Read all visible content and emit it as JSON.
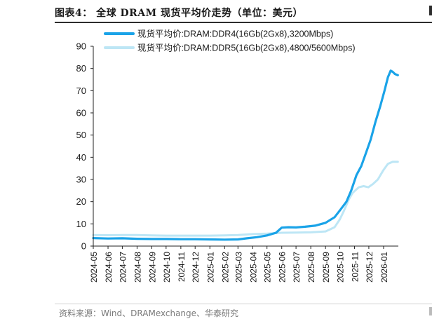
{
  "header": {
    "title": "图表4：  全球 DRAM 现货平均价走势（单位：美元）"
  },
  "footer": {
    "source": "资料来源：Wind、DRAMexchange、华泰研究"
  },
  "chart_data": {
    "type": "line",
    "ylim": [
      0,
      90
    ],
    "yticks": [
      0,
      10,
      20,
      30,
      40,
      50,
      60,
      70,
      80,
      90
    ],
    "xticks": [
      "2024-05",
      "2024-06",
      "2024-07",
      "2024-08",
      "2024-09",
      "2024-10",
      "2024-11",
      "2024-12",
      "2025-01",
      "2025-02",
      "2025-03",
      "2025-04",
      "2025-05",
      "2025-06",
      "2025-07",
      "2025-08",
      "2025-09",
      "2025-10",
      "2025-11",
      "2025-12",
      "2026-01"
    ],
    "legend_position": "top-left",
    "series": [
      {
        "name": "现货平均价:DRAM:DDR4(16Gb(2Gx8),3200Mbps)",
        "color": "#1aa3e8",
        "points": [
          [
            "2024-05-01",
            3.6
          ],
          [
            "2024-06-01",
            3.4
          ],
          [
            "2024-07-01",
            3.5
          ],
          [
            "2024-08-01",
            3.3
          ],
          [
            "2024-09-01",
            3.2
          ],
          [
            "2024-10-01",
            3.2
          ],
          [
            "2024-11-01",
            3.1
          ],
          [
            "2024-12-01",
            3.1
          ],
          [
            "2025-01-01",
            3.0
          ],
          [
            "2025-02-01",
            2.9
          ],
          [
            "2025-03-01",
            3.0
          ],
          [
            "2025-03-20",
            3.5
          ],
          [
            "2025-04-10",
            4.0
          ],
          [
            "2025-05-01",
            4.8
          ],
          [
            "2025-05-20",
            6.0
          ],
          [
            "2025-06-01",
            8.3
          ],
          [
            "2025-06-15",
            8.5
          ],
          [
            "2025-07-01",
            8.4
          ],
          [
            "2025-07-20",
            8.7
          ],
          [
            "2025-08-10",
            9.2
          ],
          [
            "2025-09-01",
            10.5
          ],
          [
            "2025-09-20",
            13.0
          ],
          [
            "2025-10-01",
            16.0
          ],
          [
            "2025-10-15",
            20.0
          ],
          [
            "2025-10-25",
            25.0
          ],
          [
            "2025-11-05",
            32.0
          ],
          [
            "2025-11-15",
            36.0
          ],
          [
            "2025-11-25",
            42.0
          ],
          [
            "2025-12-05",
            48.0
          ],
          [
            "2025-12-15",
            56.0
          ],
          [
            "2025-12-25",
            63.0
          ],
          [
            "2026-01-03",
            70.0
          ],
          [
            "2026-01-10",
            76.0
          ],
          [
            "2026-01-16",
            79.0
          ],
          [
            "2026-01-20",
            78.5
          ],
          [
            "2026-01-25",
            77.5
          ],
          [
            "2026-01-31",
            77.0
          ]
        ]
      },
      {
        "name": "现货平均价:DRAM:DDR5(16Gb(2Gx8),4800/5600Mbps)",
        "color": "#bde6f5",
        "points": [
          [
            "2024-05-01",
            5.0
          ],
          [
            "2024-06-01",
            4.9
          ],
          [
            "2024-07-01",
            5.0
          ],
          [
            "2024-08-01",
            5.0
          ],
          [
            "2024-09-01",
            4.8
          ],
          [
            "2024-10-01",
            4.7
          ],
          [
            "2024-11-01",
            4.7
          ],
          [
            "2024-12-01",
            4.7
          ],
          [
            "2025-01-01",
            4.7
          ],
          [
            "2025-02-01",
            4.8
          ],
          [
            "2025-03-01",
            5.0
          ],
          [
            "2025-04-01",
            5.4
          ],
          [
            "2025-05-01",
            5.6
          ],
          [
            "2025-06-01",
            6.0
          ],
          [
            "2025-07-01",
            6.1
          ],
          [
            "2025-08-01",
            6.2
          ],
          [
            "2025-09-01",
            6.6
          ],
          [
            "2025-09-20",
            8.5
          ],
          [
            "2025-10-01",
            12.0
          ],
          [
            "2025-10-10",
            16.0
          ],
          [
            "2025-10-20",
            21.0
          ],
          [
            "2025-10-28",
            24.0
          ],
          [
            "2025-11-10",
            26.5
          ],
          [
            "2025-11-20",
            27.0
          ],
          [
            "2025-11-30",
            26.5
          ],
          [
            "2025-12-10",
            28.0
          ],
          [
            "2025-12-20",
            30.0
          ],
          [
            "2025-12-31",
            34.0
          ],
          [
            "2026-01-10",
            37.0
          ],
          [
            "2026-01-20",
            38.0
          ],
          [
            "2026-01-31",
            38.0
          ]
        ]
      }
    ]
  }
}
